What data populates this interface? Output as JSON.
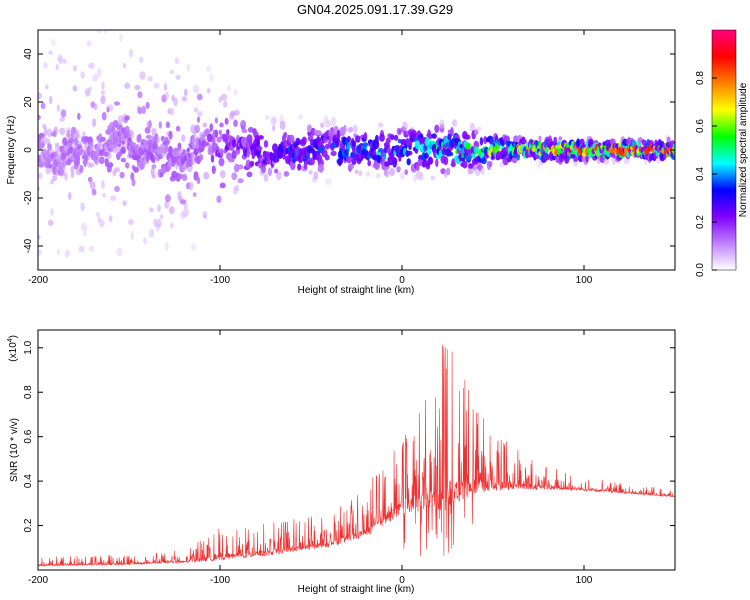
{
  "title": "GN04.2025.091.17.39.G29",
  "chart_data": [
    {
      "type": "heatmap",
      "xlabel": "Height of straight line (km)",
      "ylabel": "Frequency (Hz)",
      "xlim": [
        -200,
        150
      ],
      "ylim": [
        -50,
        50
      ],
      "x_ticks": [
        -200,
        -100,
        0,
        100
      ],
      "y_ticks": [
        -40,
        -20,
        0,
        20,
        40
      ],
      "colorbar": {
        "label": "Normalized spectral amplitude",
        "range": [
          0,
          1
        ],
        "ticks": [
          "0.0",
          "0.2",
          "0.4",
          "0.6",
          "0.8"
        ],
        "colors": [
          "#ffffff",
          "#c080ff",
          "#8000ff",
          "#0000ff",
          "#00ffff",
          "#00ff00",
          "#ffff00",
          "#ff8000",
          "#ff0000",
          "#ff0080"
        ]
      },
      "ridge": {
        "center_frequency_hz": 0,
        "spread_hz": [
          {
            "x": -200,
            "spread": 50
          },
          {
            "x": -150,
            "spread": 45
          },
          {
            "x": -110,
            "spread": 35
          },
          {
            "x": -80,
            "spread": 12
          },
          {
            "x": -20,
            "spread": 8
          },
          {
            "x": 20,
            "spread": 10
          },
          {
            "x": 60,
            "spread": 4
          },
          {
            "x": 150,
            "spread": 3
          }
        ],
        "peak_amplitude": [
          {
            "x": -200,
            "amp": 0.12
          },
          {
            "x": -110,
            "amp": 0.15
          },
          {
            "x": -60,
            "amp": 0.35
          },
          {
            "x": 0,
            "amp": 0.4
          },
          {
            "x": 40,
            "amp": 0.55
          },
          {
            "x": 80,
            "amp": 0.8
          },
          {
            "x": 150,
            "amp": 0.9
          }
        ]
      }
    },
    {
      "type": "line",
      "xlabel": "Height of straight line (km)",
      "ylabel": "SNR (10 * v/v)",
      "y_exponent_label": "(x10",
      "y_exponent": "4",
      "xlim": [
        -200,
        150
      ],
      "ylim": [
        0,
        10800
      ],
      "x_ticks": [
        -200,
        -100,
        0,
        100
      ],
      "y_ticks": [
        2000,
        4000,
        6000,
        8000,
        10000
      ],
      "y_tick_labels": [
        "0.2",
        "0.4",
        "0.6",
        "0.8",
        "1.0"
      ],
      "series": [
        {
          "color": "#f03030",
          "envelope": [
            {
              "x": -200,
              "base": 200,
              "max": 600
            },
            {
              "x": -150,
              "base": 250,
              "max": 700
            },
            {
              "x": -120,
              "base": 350,
              "max": 900
            },
            {
              "x": -100,
              "base": 500,
              "max": 1900
            },
            {
              "x": -75,
              "base": 700,
              "max": 2100
            },
            {
              "x": -40,
              "base": 1100,
              "max": 2600
            },
            {
              "x": -20,
              "base": 1600,
              "max": 3600
            },
            {
              "x": 0,
              "base": 2700,
              "max": 6500
            },
            {
              "x": 20,
              "base": 3000,
              "max": 8500
            },
            {
              "x": 23,
              "base": 3000,
              "max": 10800
            },
            {
              "x": 30,
              "base": 3400,
              "max": 9300
            },
            {
              "x": 50,
              "base": 3700,
              "max": 6300
            },
            {
              "x": 70,
              "base": 3700,
              "max": 5000
            },
            {
              "x": 100,
              "base": 3600,
              "max": 4200
            },
            {
              "x": 150,
              "base": 3300,
              "max": 3600
            }
          ]
        }
      ]
    }
  ]
}
